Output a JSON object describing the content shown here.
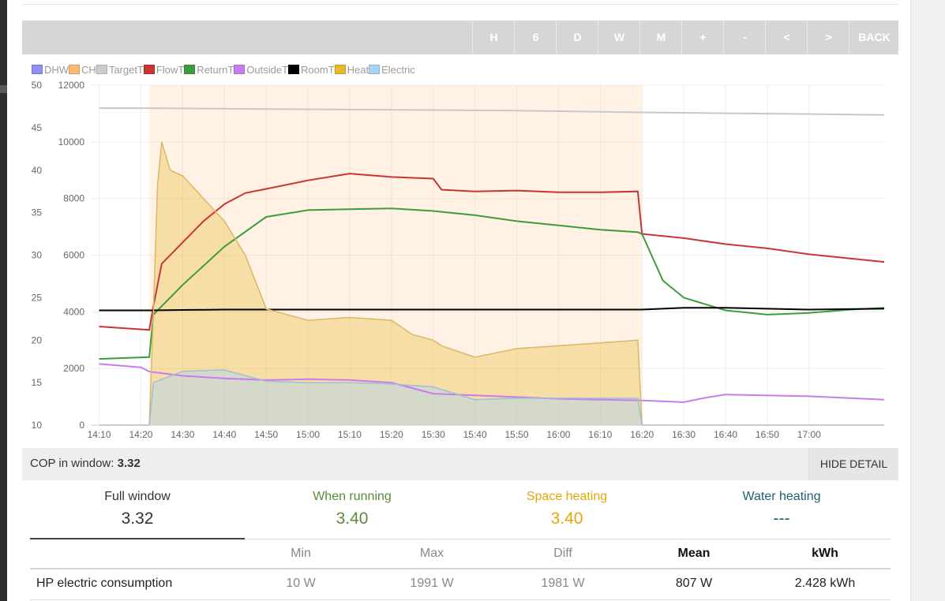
{
  "toolbar": {
    "buttons": [
      "H",
      "6",
      "D",
      "W",
      "M",
      "+",
      "-",
      "<",
      ">",
      "BACK"
    ]
  },
  "legend": [
    {
      "label": "DHW",
      "color": "#8f8ff5"
    },
    {
      "label": "CH",
      "color": "#ffb870"
    },
    {
      "label": "TargetT",
      "color": "#cccccc"
    },
    {
      "label": "FlowT",
      "color": "#c83535"
    },
    {
      "label": "ReturnT",
      "color": "#3c9d3c"
    },
    {
      "label": "OutsideT",
      "color": "#c77cf0"
    },
    {
      "label": "RoomT",
      "color": "#000000"
    },
    {
      "label": "Heat",
      "color": "#e8b930"
    },
    {
      "label": "Electric",
      "color": "#a9d2f3"
    }
  ],
  "chart_data": {
    "type": "line",
    "x_ticks": [
      "14:10",
      "14:20",
      "14:30",
      "14:40",
      "14:50",
      "15:00",
      "15:10",
      "15:20",
      "15:30",
      "15:40",
      "15:50",
      "16:00",
      "16:10",
      "16:20",
      "16:30",
      "16:40",
      "16:50",
      "17:00"
    ],
    "xlim": [
      "14:08",
      "17:18"
    ],
    "y_left_ticks": [
      "10",
      "15",
      "20",
      "25",
      "30",
      "35",
      "40",
      "45",
      "50"
    ],
    "y_left_range": [
      10,
      50
    ],
    "y_right_ticks": [
      "0",
      "2000",
      "4000",
      "6000",
      "8000",
      "10000",
      "12000"
    ],
    "y_right_range": [
      0,
      12000
    ],
    "grid": true,
    "ch_running_period": [
      "14:22",
      "16:20"
    ],
    "series": [
      {
        "name": "TargetT",
        "axis": "left",
        "color": "#c8c8c8",
        "x": [
          "14:10",
          "14:22",
          "14:50",
          "15:20",
          "15:50",
          "16:20",
          "16:40",
          "17:00",
          "17:18"
        ],
        "y": [
          47.3,
          47.3,
          47.2,
          47.1,
          47.0,
          46.8,
          46.7,
          46.6,
          46.5
        ]
      },
      {
        "name": "FlowT",
        "axis": "left",
        "color": "#c83535",
        "x": [
          "14:10",
          "14:22",
          "14:23",
          "14:25",
          "14:30",
          "14:35",
          "14:40",
          "14:45",
          "14:50",
          "15:00",
          "15:10",
          "15:20",
          "15:30",
          "15:32",
          "15:40",
          "15:50",
          "16:00",
          "16:10",
          "16:19",
          "16:20",
          "16:30",
          "16:40",
          "16:50",
          "17:00",
          "17:18"
        ],
        "y": [
          21.6,
          21.2,
          24.0,
          29.0,
          31.5,
          34.0,
          36.0,
          37.3,
          37.8,
          38.8,
          39.6,
          39.2,
          39.0,
          37.7,
          37.5,
          37.6,
          37.4,
          37.4,
          37.5,
          32.5,
          32.0,
          31.3,
          30.8,
          30.1,
          29.2
        ]
      },
      {
        "name": "ReturnT",
        "axis": "left",
        "color": "#3c9d3c",
        "x": [
          "14:10",
          "14:22",
          "14:23",
          "14:30",
          "14:40",
          "14:50",
          "15:00",
          "15:10",
          "15:20",
          "15:30",
          "15:40",
          "15:50",
          "16:00",
          "16:10",
          "16:19",
          "16:20",
          "16:25",
          "16:30",
          "16:40",
          "16:50",
          "17:00",
          "17:10",
          "17:18"
        ],
        "y": [
          17.8,
          18.0,
          23.0,
          26.5,
          31.0,
          34.5,
          35.3,
          35.4,
          35.5,
          35.2,
          34.7,
          34.0,
          33.5,
          33.0,
          32.7,
          32.5,
          27.0,
          25.0,
          23.5,
          23.0,
          23.2,
          23.6,
          23.8
        ]
      },
      {
        "name": "OutsideT",
        "axis": "left",
        "color": "#c77cf0",
        "x": [
          "14:10",
          "14:20",
          "14:22",
          "14:30",
          "14:40",
          "14:50",
          "15:00",
          "15:10",
          "15:20",
          "15:30",
          "15:40",
          "15:50",
          "16:00",
          "16:10",
          "16:20",
          "16:30",
          "16:35",
          "16:40",
          "17:00",
          "17:18"
        ],
        "y": [
          17.2,
          16.8,
          16.3,
          15.8,
          15.5,
          15.3,
          15.4,
          15.3,
          15.0,
          13.7,
          13.5,
          13.3,
          13.1,
          13.0,
          12.9,
          12.7,
          13.2,
          13.6,
          13.4,
          13.0
        ]
      },
      {
        "name": "RoomT",
        "axis": "left",
        "color": "#000000",
        "x": [
          "14:10",
          "14:22",
          "14:40",
          "15:00",
          "15:30",
          "16:00",
          "16:20",
          "16:30",
          "16:40",
          "17:00",
          "17:18"
        ],
        "y": [
          23.5,
          23.5,
          23.6,
          23.6,
          23.6,
          23.6,
          23.6,
          23.8,
          23.8,
          23.6,
          23.7
        ]
      },
      {
        "name": "Heat",
        "axis": "right",
        "color": "#e8b930",
        "x": [
          "14:10",
          "14:22",
          "14:23",
          "14:24",
          "14:25",
          "14:27",
          "14:30",
          "14:35",
          "14:40",
          "14:45",
          "14:50",
          "15:00",
          "15:10",
          "15:20",
          "15:25",
          "15:30",
          "15:32",
          "15:40",
          "15:50",
          "16:00",
          "16:10",
          "16:19",
          "16:20",
          "17:18"
        ],
        "y": [
          0,
          0,
          4000,
          8500,
          10000,
          9000,
          8800,
          8000,
          7200,
          6000,
          4100,
          3700,
          3800,
          3700,
          3200,
          3000,
          2800,
          2400,
          2700,
          2800,
          2900,
          3000,
          0,
          0
        ]
      },
      {
        "name": "Electric",
        "axis": "right",
        "color": "#a9d2f3",
        "x": [
          "14:10",
          "14:22",
          "14:23",
          "14:30",
          "14:40",
          "14:50",
          "15:00",
          "15:10",
          "15:20",
          "15:30",
          "15:40",
          "15:50",
          "16:00",
          "16:10",
          "16:19",
          "16:20",
          "17:18"
        ],
        "y": [
          0,
          0,
          1500,
          1900,
          1950,
          1550,
          1500,
          1500,
          1450,
          1350,
          900,
          950,
          950,
          950,
          950,
          0,
          0
        ]
      }
    ]
  },
  "cop_bar": {
    "label": "COP in window:",
    "value": "3.32",
    "hide_button": "HIDE DETAIL"
  },
  "summary": [
    {
      "title": "Full window",
      "value": "3.32",
      "color": "#333333"
    },
    {
      "title": "When running",
      "value": "3.40",
      "color": "#5a8a3c"
    },
    {
      "title": "Space heating",
      "value": "3.40",
      "color": "#e6a50a"
    },
    {
      "title": "Water heating",
      "value": "---",
      "color": "#1f5f6b"
    }
  ],
  "table": {
    "headers": [
      "",
      "Min",
      "Max",
      "Diff",
      "Mean",
      "kWh"
    ],
    "rows": [
      [
        "HP electric consumption",
        "10 W",
        "1991 W",
        "1981 W",
        "807 W",
        "2.428 kWh"
      ]
    ]
  }
}
